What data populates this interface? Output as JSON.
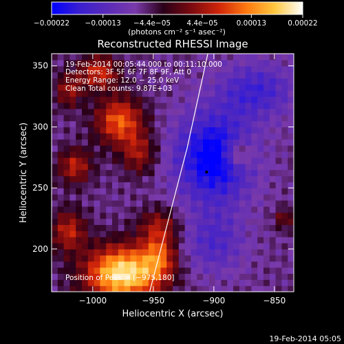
{
  "chart_data": {
    "type": "heatmap",
    "title": "Reconstructed RHESSI Image",
    "xlabel": "Heliocentric X (arcsec)",
    "ylabel": "Heliocentric Y (arcsec)",
    "x_range": [
      -1034,
      -834
    ],
    "y_range": [
      165,
      360
    ],
    "x_ticks": [
      -1000,
      -950,
      -900,
      -850
    ],
    "x_tick_labels": [
      "−1000",
      "−950",
      "−900",
      "−850"
    ],
    "y_ticks": [
      200,
      250,
      300,
      350
    ],
    "y_tick_labels": [
      "200",
      "250",
      "300",
      "350"
    ],
    "colorbar": {
      "range": [
        -0.00022,
        0.00022
      ],
      "ticks": [
        -0.00022,
        -0.00013,
        -4.4e-05,
        4.4e-05,
        0.00013,
        0.00022
      ],
      "tick_labels": [
        "−0.00022",
        "−0.00013",
        "−4.4e−05",
        "4.4e−05",
        "0.00013",
        "0.00022"
      ],
      "units_label": "(photons cm⁻² s⁻¹ asec⁻²)",
      "colors": [
        "#0000ff",
        "#3a1fd0",
        "#5a2bb8",
        "#7a3aaa",
        "#2a0018",
        "#7a0a10",
        "#d0250a",
        "#ff7a10",
        "#ffc840",
        "#ffffff"
      ]
    },
    "annotations": [
      "19-Feb-2014 00:05:44.000 to 00:11:10.000",
      "Detectors: 3F 5F 6F 7F 8F 9F, Att 0",
      "Energy Range: 12.0 − 25.0 keV",
      "Clean     Total counts: 9.87E+03"
    ],
    "peak_label": "Position of Peak = [−975,180]",
    "peak": [
      -975,
      180
    ],
    "marker": [
      -906,
      263
    ],
    "limb_line": [
      [
        -953,
        165
      ],
      [
        -922,
        283
      ],
      [
        -905,
        360
      ]
    ],
    "sources": [
      {
        "x": -975,
        "y": 180,
        "amp": 1.2,
        "sx": 22,
        "sy": 16
      },
      {
        "x": -1020,
        "y": 215,
        "amp": 0.55,
        "sx": 10,
        "sy": 12
      },
      {
        "x": -945,
        "y": 195,
        "amp": 0.55,
        "sx": 10,
        "sy": 14
      },
      {
        "x": -978,
        "y": 305,
        "amp": 0.75,
        "sx": 14,
        "sy": 14
      },
      {
        "x": -962,
        "y": 278,
        "amp": 0.45,
        "sx": 10,
        "sy": 12
      },
      {
        "x": -995,
        "y": 345,
        "amp": 0.6,
        "sx": 12,
        "sy": 10
      },
      {
        "x": -1020,
        "y": 330,
        "amp": 0.45,
        "sx": 8,
        "sy": 10
      },
      {
        "x": -1015,
        "y": 268,
        "amp": 0.55,
        "sx": 10,
        "sy": 10
      },
      {
        "x": -945,
        "y": 220,
        "amp": 0.4,
        "sx": 12,
        "sy": 10
      },
      {
        "x": -880,
        "y": 278,
        "amp": 0.5,
        "sx": 8,
        "sy": 8
      },
      {
        "x": -842,
        "y": 225,
        "amp": 0.35,
        "sx": 6,
        "sy": 6
      }
    ],
    "negative_regions": [
      {
        "x": -900,
        "y": 275,
        "amp": 0.8,
        "sx": 22,
        "sy": 26
      },
      {
        "x": -865,
        "y": 330,
        "amp": 0.45,
        "sx": 22,
        "sy": 16
      },
      {
        "x": -900,
        "y": 205,
        "amp": 0.35,
        "sx": 18,
        "sy": 18
      }
    ]
  },
  "footer": {
    "timestamp": "19-Feb-2014 05:05"
  }
}
